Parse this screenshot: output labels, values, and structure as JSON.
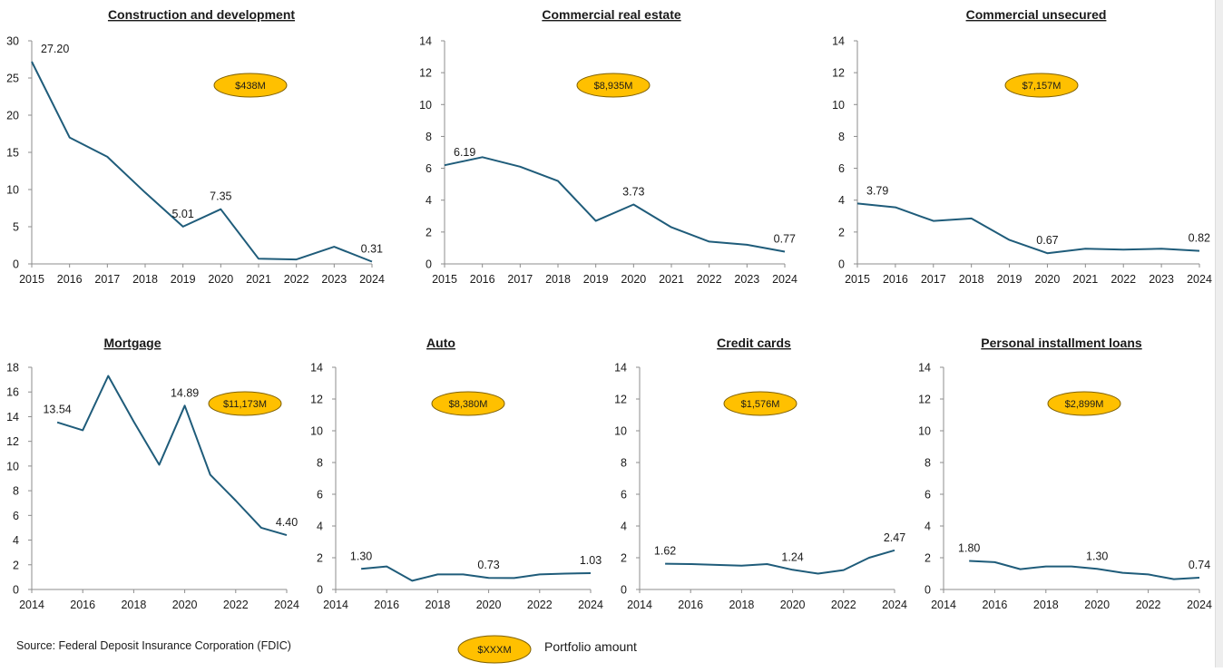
{
  "chart_data": [
    {
      "type": "line",
      "title": "Construction and development",
      "x": [
        2015,
        2016,
        2017,
        2018,
        2019,
        2020,
        2021,
        2022,
        2023,
        2024
      ],
      "series": [
        {
          "values": [
            27.2,
            17.0,
            14.4,
            9.6,
            5.01,
            7.35,
            0.7,
            0.6,
            2.3,
            0.31
          ]
        }
      ],
      "data_labels": [
        {
          "x": 2015,
          "y": 27.2,
          "text": "27.20"
        },
        {
          "x": 2019,
          "y": 5.01,
          "text": "5.01"
        },
        {
          "x": 2020,
          "y": 7.35,
          "text": "7.35"
        },
        {
          "x": 2024,
          "y": 0.31,
          "text": "0.31"
        }
      ],
      "xticks": [
        2015,
        2016,
        2017,
        2018,
        2019,
        2020,
        2021,
        2022,
        2023,
        2024
      ],
      "xlim": [
        2015,
        2024
      ],
      "yticks": [
        0,
        5,
        10,
        15,
        20,
        25,
        30
      ],
      "ylim": [
        0,
        30
      ],
      "portfolio_amount": "$438M",
      "grid": false
    },
    {
      "type": "line",
      "title": "Commercial real estate",
      "x": [
        2015,
        2016,
        2017,
        2018,
        2019,
        2020,
        2021,
        2022,
        2023,
        2024
      ],
      "series": [
        {
          "values": [
            6.19,
            6.7,
            6.1,
            5.2,
            2.7,
            3.73,
            2.3,
            1.4,
            1.2,
            0.77
          ]
        }
      ],
      "data_labels": [
        {
          "x": 2015,
          "y": 6.19,
          "text": "6.19"
        },
        {
          "x": 2020,
          "y": 3.73,
          "text": "3.73"
        },
        {
          "x": 2024,
          "y": 0.77,
          "text": "0.77"
        }
      ],
      "xticks": [
        2015,
        2016,
        2017,
        2018,
        2019,
        2020,
        2021,
        2022,
        2023,
        2024
      ],
      "xlim": [
        2015,
        2024
      ],
      "yticks": [
        0,
        2,
        4,
        6,
        8,
        10,
        12,
        14
      ],
      "ylim": [
        0,
        14
      ],
      "portfolio_amount": "$8,935M",
      "grid": false
    },
    {
      "type": "line",
      "title": "Commercial unsecured",
      "x": [
        2015,
        2016,
        2017,
        2018,
        2019,
        2020,
        2021,
        2022,
        2023,
        2024
      ],
      "series": [
        {
          "values": [
            3.79,
            3.55,
            2.7,
            2.85,
            1.5,
            0.67,
            0.95,
            0.9,
            0.95,
            0.82
          ]
        }
      ],
      "data_labels": [
        {
          "x": 2015,
          "y": 3.79,
          "text": "3.79"
        },
        {
          "x": 2020,
          "y": 0.67,
          "text": "0.67"
        },
        {
          "x": 2024,
          "y": 0.82,
          "text": "0.82"
        }
      ],
      "xticks": [
        2015,
        2016,
        2017,
        2018,
        2019,
        2020,
        2021,
        2022,
        2023,
        2024
      ],
      "xlim": [
        2015,
        2024
      ],
      "yticks": [
        0,
        2,
        4,
        6,
        8,
        10,
        12,
        14
      ],
      "ylim": [
        0,
        14
      ],
      "portfolio_amount": "$7,157M",
      "grid": false
    },
    {
      "type": "line",
      "title": "Mortgage",
      "x": [
        2015,
        2016,
        2017,
        2018,
        2019,
        2020,
        2021,
        2022,
        2023,
        2024
      ],
      "series": [
        {
          "values": [
            13.54,
            12.9,
            17.3,
            13.6,
            10.1,
            14.89,
            9.3,
            7.2,
            5.0,
            4.4
          ]
        }
      ],
      "data_labels": [
        {
          "x": 2015,
          "y": 13.54,
          "text": "13.54"
        },
        {
          "x": 2020,
          "y": 14.89,
          "text": "14.89"
        },
        {
          "x": 2024,
          "y": 4.4,
          "text": "4.40"
        }
      ],
      "xticks": [
        2014,
        2016,
        2018,
        2020,
        2022,
        2024
      ],
      "xlim": [
        2014,
        2024
      ],
      "yticks": [
        0,
        2,
        4,
        6,
        8,
        10,
        12,
        14,
        16,
        18
      ],
      "ylim": [
        0,
        18
      ],
      "portfolio_amount": "$11,173M",
      "grid": false
    },
    {
      "type": "line",
      "title": "Auto",
      "x": [
        2015,
        2016,
        2017,
        2018,
        2019,
        2020,
        2021,
        2022,
        2023,
        2024
      ],
      "series": [
        {
          "values": [
            1.3,
            1.45,
            0.55,
            0.95,
            0.95,
            0.73,
            0.72,
            0.95,
            1.0,
            1.03
          ]
        }
      ],
      "data_labels": [
        {
          "x": 2015,
          "y": 1.3,
          "text": "1.30"
        },
        {
          "x": 2020,
          "y": 0.73,
          "text": "0.73"
        },
        {
          "x": 2024,
          "y": 1.03,
          "text": "1.03"
        }
      ],
      "xticks": [
        2014,
        2016,
        2018,
        2020,
        2022,
        2024
      ],
      "xlim": [
        2014,
        2024
      ],
      "yticks": [
        0,
        2,
        4,
        6,
        8,
        10,
        12,
        14
      ],
      "ylim": [
        0,
        14
      ],
      "portfolio_amount": "$8,380M",
      "grid": false
    },
    {
      "type": "line",
      "title": "Credit cards",
      "x": [
        2015,
        2016,
        2017,
        2018,
        2019,
        2020,
        2021,
        2022,
        2023,
        2024
      ],
      "series": [
        {
          "values": [
            1.62,
            1.6,
            1.55,
            1.5,
            1.6,
            1.24,
            1.0,
            1.22,
            2.0,
            2.47
          ]
        }
      ],
      "data_labels": [
        {
          "x": 2015,
          "y": 1.62,
          "text": "1.62"
        },
        {
          "x": 2020,
          "y": 1.24,
          "text": "1.24"
        },
        {
          "x": 2024,
          "y": 2.47,
          "text": "2.47"
        }
      ],
      "xticks": [
        2014,
        2016,
        2018,
        2020,
        2022,
        2024
      ],
      "xlim": [
        2014,
        2024
      ],
      "yticks": [
        0,
        2,
        4,
        6,
        8,
        10,
        12,
        14
      ],
      "ylim": [
        0,
        14
      ],
      "portfolio_amount": "$1,576M",
      "grid": false
    },
    {
      "type": "line",
      "title": "Personal installment loans",
      "x": [
        2015,
        2016,
        2017,
        2018,
        2019,
        2020,
        2021,
        2022,
        2023,
        2024
      ],
      "series": [
        {
          "values": [
            1.8,
            1.72,
            1.28,
            1.45,
            1.45,
            1.3,
            1.05,
            0.95,
            0.65,
            0.74
          ]
        }
      ],
      "data_labels": [
        {
          "x": 2015,
          "y": 1.8,
          "text": "1.80"
        },
        {
          "x": 2020,
          "y": 1.3,
          "text": "1.30"
        },
        {
          "x": 2024,
          "y": 0.74,
          "text": "0.74"
        }
      ],
      "xticks": [
        2014,
        2016,
        2018,
        2020,
        2022,
        2024
      ],
      "xlim": [
        2014,
        2024
      ],
      "yticks": [
        0,
        2,
        4,
        6,
        8,
        10,
        12,
        14
      ],
      "ylim": [
        0,
        14
      ],
      "portfolio_amount": "$2,899M",
      "grid": false
    }
  ],
  "colors": {
    "line": "#1f5c7a",
    "badge_fill": "#ffc000",
    "badge_stroke": "#7f6000",
    "axis": "#8c8c8c",
    "text": "#1a1a1a"
  },
  "source": "Source: Federal Deposit Insurance Corporation (FDIC)",
  "legend": {
    "badge": "$XXXM",
    "label": "Portfolio amount"
  }
}
